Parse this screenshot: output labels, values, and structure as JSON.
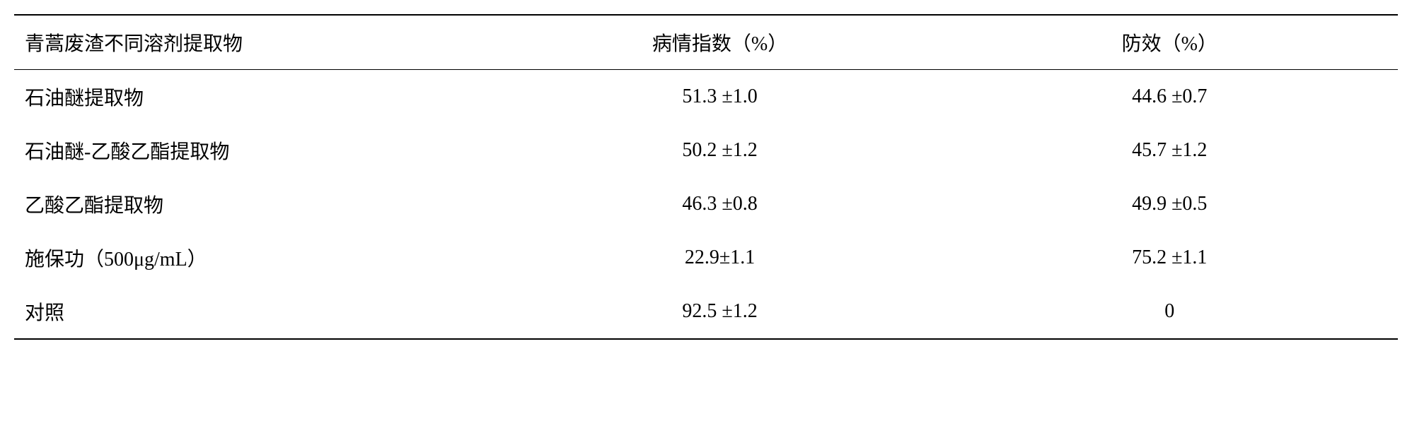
{
  "table": {
    "columns": [
      "青蒿废渣不同溶剂提取物",
      "病情指数（%）",
      "防效（%）"
    ],
    "rows": [
      {
        "extract": "石油醚提取物",
        "disease_index": "51.3 ±1.0",
        "efficacy": "44.6 ±0.7"
      },
      {
        "extract": "石油醚-乙酸乙酯提取物",
        "disease_index": "50.2 ±1.2",
        "efficacy": "45.7 ±1.2"
      },
      {
        "extract": "乙酸乙酯提取物",
        "disease_index": "46.3 ±0.8",
        "efficacy": "49.9 ±0.5"
      },
      {
        "extract": "施保功（500μg/mL）",
        "disease_index": "22.9±1.1",
        "efficacy": "75.2 ±1.1"
      },
      {
        "extract": "对照",
        "disease_index": "92.5 ±1.2",
        "efficacy": "0"
      }
    ],
    "styling": {
      "font_size": 28,
      "font_family_cn": "SimSun",
      "font_family_num": "Times New Roman",
      "text_color": "#000000",
      "background_color": "#ffffff",
      "border_color": "#000000",
      "top_border_width": 2,
      "header_bottom_border_width": 1.5,
      "bottom_border_width": 2,
      "row_padding_vertical": 18,
      "col1_width_pct": 35,
      "col2_width_pct": 32,
      "col3_width_pct": 33,
      "col1_align": "left",
      "col2_align": "center",
      "col3_align": "center"
    }
  }
}
